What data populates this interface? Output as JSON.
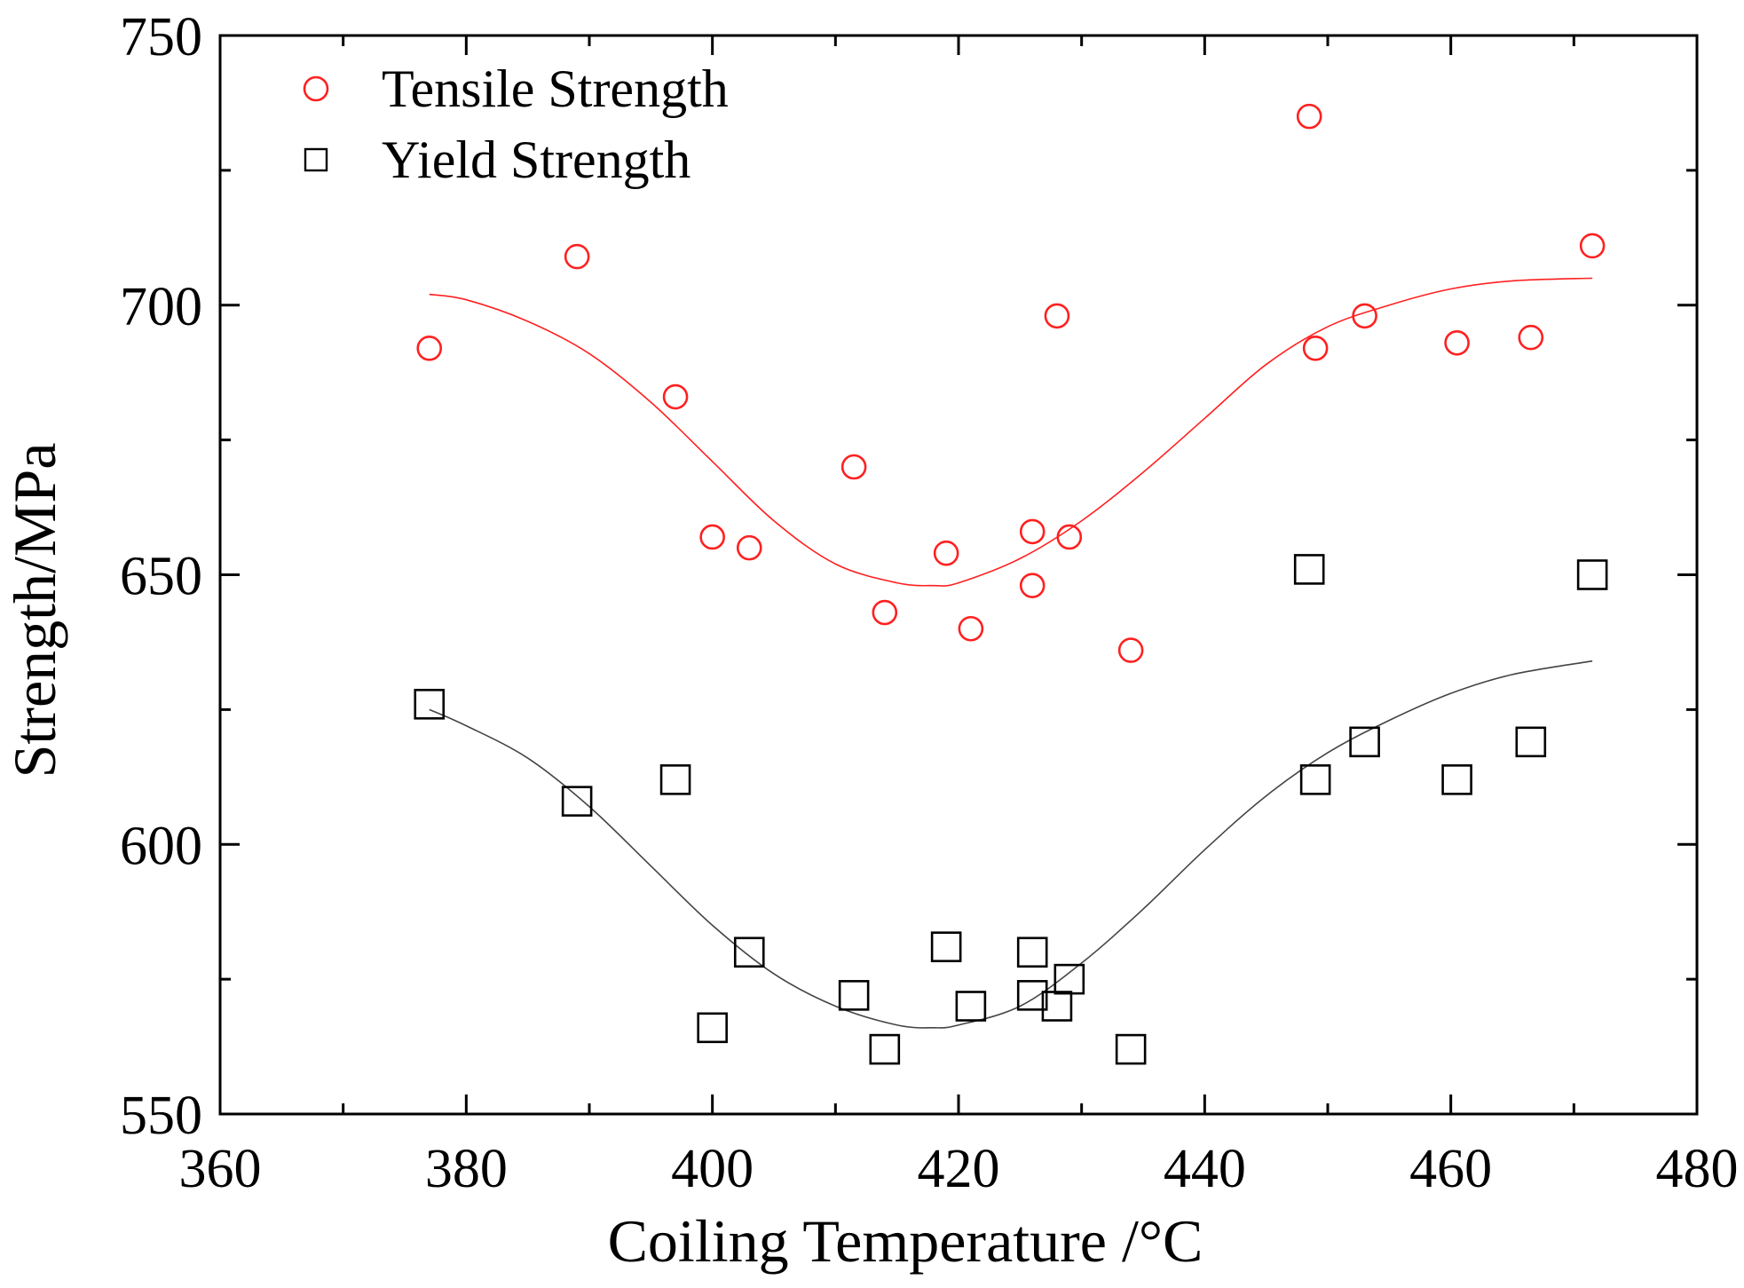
{
  "chart_data": {
    "type": "scatter",
    "xlabel": "Coiling Temperature /°C",
    "ylabel": "Strength/MPa",
    "xlim": [
      360,
      480
    ],
    "ylim": [
      550,
      750
    ],
    "xticks": [
      360,
      380,
      400,
      420,
      440,
      460,
      480
    ],
    "yticks": [
      550,
      600,
      650,
      700,
      750
    ],
    "grid": false,
    "legend_position": "top-left",
    "series": [
      {
        "name": "Tensile Strength",
        "marker": "circle",
        "color": "#ff2020",
        "points": [
          [
            377,
            692
          ],
          [
            389,
            709
          ],
          [
            397,
            683
          ],
          [
            400,
            657
          ],
          [
            403,
            655
          ],
          [
            411.5,
            670
          ],
          [
            414,
            643
          ],
          [
            419,
            654
          ],
          [
            421,
            640
          ],
          [
            426,
            658
          ],
          [
            426,
            648
          ],
          [
            428,
            698
          ],
          [
            429,
            657
          ],
          [
            434,
            636
          ],
          [
            448.5,
            735
          ],
          [
            449,
            692
          ],
          [
            453,
            698
          ],
          [
            460.5,
            693
          ],
          [
            466.5,
            694
          ],
          [
            471.5,
            711
          ]
        ],
        "fit_curve": [
          [
            377,
            702
          ],
          [
            380,
            701
          ],
          [
            385,
            697
          ],
          [
            390,
            691
          ],
          [
            395,
            682
          ],
          [
            400,
            671
          ],
          [
            405,
            660
          ],
          [
            410,
            652
          ],
          [
            415,
            648.5
          ],
          [
            418,
            648
          ],
          [
            420,
            648.5
          ],
          [
            425,
            653
          ],
          [
            430,
            660
          ],
          [
            435,
            669
          ],
          [
            440,
            679
          ],
          [
            445,
            689
          ],
          [
            450,
            696
          ],
          [
            455,
            700
          ],
          [
            460,
            703
          ],
          [
            465,
            704.5
          ],
          [
            471.5,
            705
          ]
        ]
      },
      {
        "name": "Yield Strength",
        "marker": "square",
        "color": "#000000",
        "points": [
          [
            377,
            626
          ],
          [
            389,
            608
          ],
          [
            397,
            612
          ],
          [
            400,
            566
          ],
          [
            403,
            580
          ],
          [
            411.5,
            572
          ],
          [
            414,
            562
          ],
          [
            419,
            581
          ],
          [
            421,
            570
          ],
          [
            426,
            580
          ],
          [
            426,
            572
          ],
          [
            428,
            570
          ],
          [
            429,
            575
          ],
          [
            434,
            562
          ],
          [
            448.5,
            651
          ],
          [
            449,
            612
          ],
          [
            453,
            619
          ],
          [
            460.5,
            612
          ],
          [
            466.5,
            619
          ],
          [
            471.5,
            650
          ]
        ],
        "fit_curve": [
          [
            377,
            625
          ],
          [
            380,
            622
          ],
          [
            385,
            616
          ],
          [
            390,
            607
          ],
          [
            395,
            596
          ],
          [
            400,
            585
          ],
          [
            405,
            576
          ],
          [
            410,
            570
          ],
          [
            415,
            566.5
          ],
          [
            418,
            566
          ],
          [
            420,
            566.5
          ],
          [
            425,
            570
          ],
          [
            430,
            578
          ],
          [
            435,
            588
          ],
          [
            440,
            599
          ],
          [
            445,
            609
          ],
          [
            450,
            617
          ],
          [
            455,
            623
          ],
          [
            460,
            628
          ],
          [
            465,
            631.5
          ],
          [
            471.5,
            634
          ]
        ]
      }
    ]
  }
}
